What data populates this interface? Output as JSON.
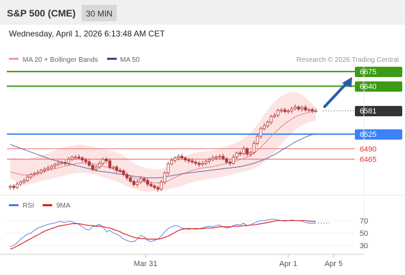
{
  "header": {
    "instrument": "S&P 500 (CME)",
    "timeframe": "30 MIN",
    "datetime": "Wednesday, April 1, 2026 6:13:48 AM CET"
  },
  "legend": {
    "ma20": "MA 20 + Bollinger Bands",
    "ma50": "MA 50",
    "credit": "Research © 2026 Trading Central",
    "rsi": "RSI",
    "ma9": "9MA"
  },
  "colors": {
    "candle": "#b03a3a",
    "band": "#fde4e4",
    "ma20": "#e87f7f",
    "ma50": "#5c6aa8",
    "resistance": "#3c9a14",
    "pivot": "#3b82f6",
    "support": "#ee7777",
    "rsi": "#5577dd",
    "rsi_ma": "#dd2222",
    "arrow": "#2a5ca8"
  },
  "chart_data": [
    {
      "type": "candlestick",
      "x_ticks": [
        "Mar 31",
        "Apr 1",
        "Apr 5"
      ],
      "ylim": [
        6385,
        6690
      ],
      "levels": [
        {
          "value": 6675,
          "label": "6675",
          "kind": "resistance"
        },
        {
          "value": 6640,
          "label": "6640",
          "kind": "resistance"
        },
        {
          "value": 6581,
          "label": "6581",
          "kind": "last"
        },
        {
          "value": 6525,
          "label": "6525",
          "kind": "pivot"
        },
        {
          "value": 6490,
          "label": "6490",
          "kind": "support"
        },
        {
          "value": 6465,
          "label": "6465",
          "kind": "support"
        }
      ],
      "closes": [
        6400,
        6397,
        6405,
        6410,
        6414,
        6422,
        6428,
        6430,
        6433,
        6438,
        6441,
        6444,
        6448,
        6452,
        6456,
        6457,
        6455,
        6465,
        6470,
        6470,
        6468,
        6463,
        6459,
        6450,
        6441,
        6446,
        6455,
        6465,
        6461,
        6445,
        6446,
        6438,
        6437,
        6428,
        6420,
        6412,
        6404,
        6410,
        6418,
        6414,
        6405,
        6401,
        6397,
        6393,
        6410,
        6432,
        6454,
        6462,
        6468,
        6472,
        6468,
        6463,
        6461,
        6458,
        6455,
        6452,
        6455,
        6460,
        6464,
        6468,
        6470,
        6472,
        6466,
        6458,
        6455,
        6470,
        6480,
        6478,
        6490,
        6477,
        6481,
        6503,
        6520,
        6538,
        6545,
        6554,
        6567,
        6570,
        6582,
        6583,
        6579,
        6581,
        6586,
        6590,
        6585,
        6589,
        6583,
        6584,
        6581,
        6581
      ],
      "bands": {
        "upper": [
          6468,
          6468,
          6467,
          6466,
          6465,
          6466,
          6468,
          6470,
          6472,
          6475,
          6477,
          6480,
          6483,
          6486,
          6489,
          6492,
          6494,
          6496,
          6498,
          6499,
          6500,
          6500,
          6499,
          6497,
          6495,
          6493,
          6491,
          6489,
          6488,
          6486,
          6484,
          6482,
          6478,
          6473,
          6468,
          6462,
          6456,
          6451,
          6447,
          6445,
          6443,
          6442,
          6441,
          6440,
          6441,
          6444,
          6449,
          6454,
          6459,
          6464,
          6469,
          6473,
          6476,
          6479,
          6481,
          6482,
          6483,
          6484,
          6485,
          6486,
          6488,
          6490,
          6493,
          6496,
          6499,
          6502,
          6506,
          6510,
          6515,
          6521,
          6528,
          6537,
          6548,
          6560,
          6572,
          6584,
          6594,
          6603,
          6610,
          6616,
          6621,
          6624,
          6626,
          6626,
          6623,
          6619,
          6613,
          6605,
          6597,
          6590
        ],
        "lower": [
          6418,
          6414,
          6410,
          6407,
          6405,
          6405,
          6406,
          6408,
          6410,
          6412,
          6414,
          6416,
          6418,
          6420,
          6422,
          6424,
          6426,
          6428,
          6430,
          6431,
          6432,
          6432,
          6432,
          6431,
          6429,
          6427,
          6425,
          6422,
          6420,
          6417,
          6414,
          6411,
          6408,
          6404,
          6400,
          6397,
          6394,
          6391,
          6389,
          6388,
          6387,
          6387,
          6387,
          6388,
          6389,
          6390,
          6392,
          6394,
          6396,
          6398,
          6401,
          6404,
          6407,
          6409,
          6411,
          6413,
          6415,
          6416,
          6418,
          6419,
          6420,
          6421,
          6423,
          6425,
          6427,
          6429,
          6431,
          6433,
          6435,
          6437,
          6439,
          6442,
          6446,
          6451,
          6457,
          6464,
          6472,
          6481,
          6491,
          6501,
          6511,
          6520,
          6528,
          6535,
          6541,
          6546,
          6550,
          6553,
          6556,
          6558
        ]
      },
      "ma20": [
        6435,
        6432,
        6430,
        6428,
        6427,
        6427,
        6428,
        6430,
        6432,
        6434,
        6436,
        6438,
        6440,
        6442,
        6444,
        6446,
        6448,
        6450,
        6452,
        6454,
        6455,
        6456,
        6456,
        6455,
        6454,
        6452,
        6450,
        6448,
        6446,
        6444,
        6441,
        6438,
        6435,
        6432,
        6428,
        6424,
        6420,
        6417,
        6414,
        6412,
        6410,
        6409,
        6408,
        6408,
        6408,
        6410,
        6413,
        6417,
        6421,
        6425,
        6429,
        6432,
        6435,
        6438,
        6440,
        6442,
        6444,
        6445,
        6446,
        6447,
        6449,
        6451,
        6453,
        6455,
        6457,
        6459,
        6461,
        6464,
        6467,
        6470,
        6474,
        6479,
        6486,
        6494,
        6502,
        6511,
        6520,
        6528,
        6536,
        6543,
        6550,
        6556,
        6561,
        6566,
        6570,
        6573,
        6575,
        6577,
        6579,
        6580
      ],
      "ma50": [
        6500,
        6497,
        6494,
        6491,
        6488,
        6485,
        6482,
        6479,
        6476,
        6473,
        6470,
        6467,
        6464,
        6462,
        6460,
        6458,
        6456,
        6454,
        6452,
        6450,
        6448,
        6446,
        6444,
        6442,
        6440,
        6438,
        6436,
        6435,
        6434,
        6433,
        6432,
        6430,
        6429,
        6428,
        6427,
        6425,
        6424,
        6423,
        6422,
        6421,
        6420,
        6420,
        6420,
        6420,
        6421,
        6422,
        6424,
        6425,
        6427,
        6428,
        6430,
        6431,
        6432,
        6433,
        6434,
        6435,
        6436,
        6437,
        6438,
        6439,
        6440,
        6441,
        6442,
        6443,
        6444,
        6445,
        6446,
        6447,
        6449,
        6451,
        6453,
        6455,
        6458,
        6461,
        6464,
        6468,
        6472,
        6476,
        6481,
        6486,
        6491,
        6496,
        6501,
        6506,
        6510,
        6514,
        6518,
        6521,
        6524,
        6526
      ]
    },
    {
      "type": "line",
      "name": "RSI",
      "ylim": [
        20,
        82
      ],
      "y_ticks": [
        70,
        50,
        30
      ],
      "rsi": [
        28,
        30,
        34,
        40,
        44,
        48,
        50,
        54,
        58,
        60,
        62,
        64,
        65,
        66,
        68,
        68,
        67,
        69,
        68,
        66,
        64,
        60,
        56,
        55,
        60,
        62,
        64,
        60,
        52,
        54,
        50,
        48,
        45,
        40,
        38,
        36,
        36,
        40,
        46,
        44,
        38,
        36,
        38,
        40,
        45,
        52,
        57,
        60,
        62,
        61,
        58,
        57,
        56,
        57,
        56,
        57,
        58,
        60,
        61,
        60,
        62,
        63,
        60,
        58,
        59,
        62,
        64,
        63,
        66,
        62,
        63,
        66,
        68,
        70,
        70,
        71,
        72,
        72,
        71,
        70,
        69,
        70,
        71,
        70,
        70,
        69,
        67,
        66,
        66,
        66
      ],
      "ma": [
        24,
        26,
        29,
        32,
        35,
        38,
        41,
        44,
        47,
        50,
        53,
        55,
        57,
        59,
        61,
        62,
        63,
        64,
        65,
        65,
        65,
        64,
        63,
        62,
        62,
        61,
        61,
        60,
        59,
        58,
        56,
        54,
        52,
        49,
        47,
        45,
        43,
        42,
        41,
        41,
        40,
        40,
        40,
        40,
        41,
        43,
        45,
        48,
        51,
        54,
        56,
        57,
        57,
        57,
        57,
        57,
        57,
        58,
        58,
        58,
        59,
        60,
        60,
        60,
        60,
        61,
        61,
        61,
        62,
        62,
        63,
        63,
        64,
        65,
        66,
        67,
        68,
        69,
        70,
        70,
        70,
        70,
        70,
        70,
        70,
        70,
        70,
        69,
        69,
        68
      ]
    }
  ]
}
